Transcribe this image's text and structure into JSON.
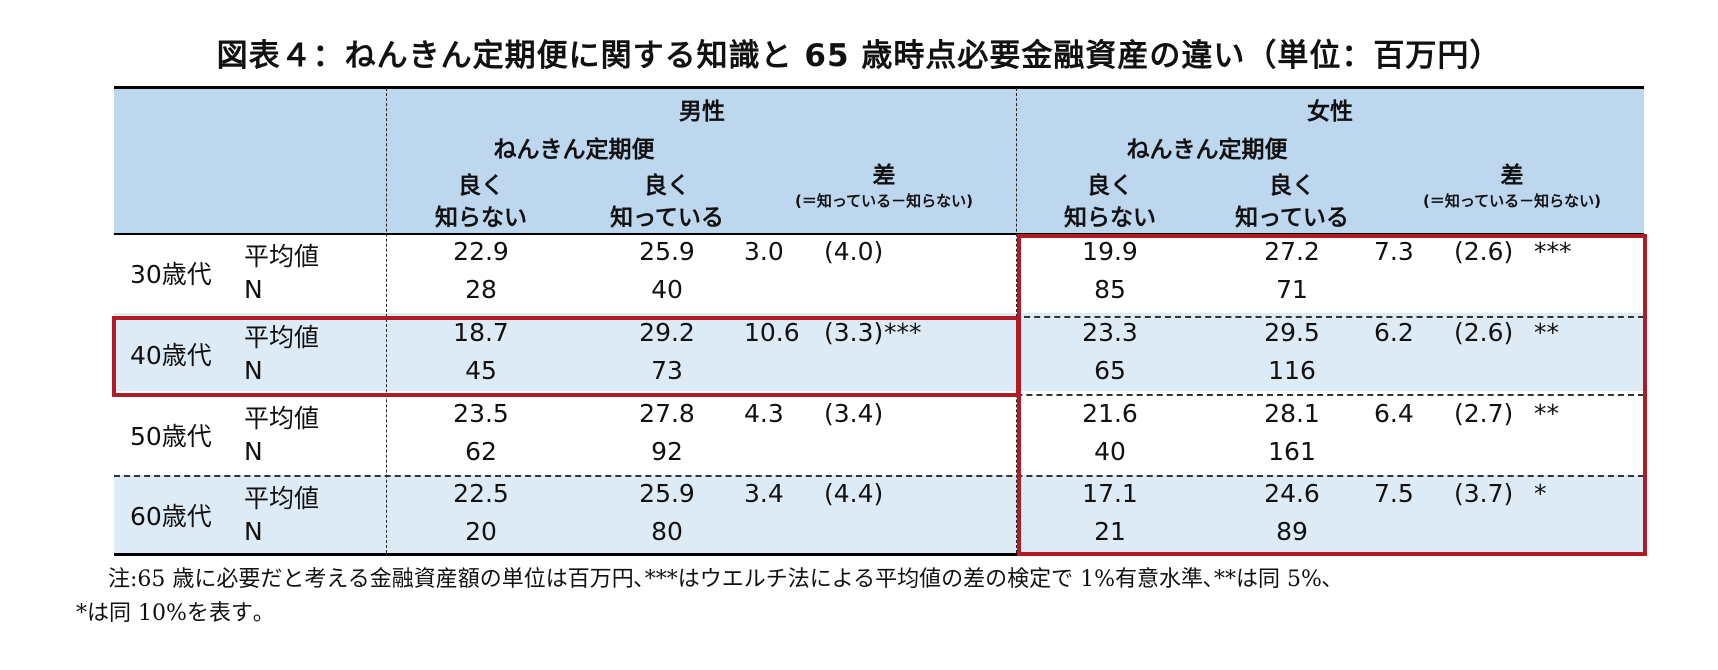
{
  "title": "図表４：ねんきん定期便に関する知識と 65 歳時点必要金融資産の違い（単位：百万円）",
  "header": {
    "male": "男性",
    "female": "女性",
    "nenkin": "ねんきん定期便",
    "col_unknown_1": "良く",
    "col_unknown_2": "知らない",
    "col_known_1": "良く",
    "col_known_2": "知っている",
    "diff_1": "差",
    "diff_2": "(＝知っている－知らない)"
  },
  "row_labels": {
    "mean": "平均値",
    "n": "N"
  },
  "rows": [
    {
      "age": "30歳代",
      "male": {
        "mean_unknown": "22.9",
        "mean_known": "25.9",
        "diff": "3.0",
        "se": "(4.0)",
        "sig": "",
        "n_unknown": "28",
        "n_known": "40"
      },
      "female": {
        "mean_unknown": "19.9",
        "mean_known": "27.2",
        "diff": "7.3",
        "se": "(2.6)",
        "sig": "***",
        "n_unknown": "85",
        "n_known": "71"
      }
    },
    {
      "age": "40歳代",
      "male": {
        "mean_unknown": "18.7",
        "mean_known": "29.2",
        "diff": "10.6",
        "se": "(3.3)",
        "sig": "***",
        "n_unknown": "45",
        "n_known": "73"
      },
      "female": {
        "mean_unknown": "23.3",
        "mean_known": "29.5",
        "diff": "6.2",
        "se": "(2.6)",
        "sig": "**",
        "n_unknown": "65",
        "n_known": "116"
      }
    },
    {
      "age": "50歳代",
      "male": {
        "mean_unknown": "23.5",
        "mean_known": "27.8",
        "diff": "4.3",
        "se": "(3.4)",
        "sig": "",
        "n_unknown": "62",
        "n_known": "92"
      },
      "female": {
        "mean_unknown": "21.6",
        "mean_known": "28.1",
        "diff": "6.4",
        "se": "(2.7)",
        "sig": "**",
        "n_unknown": "40",
        "n_known": "161"
      }
    },
    {
      "age": "60歳代",
      "male": {
        "mean_unknown": "22.5",
        "mean_known": "25.9",
        "diff": "3.4",
        "se": "(4.4)",
        "sig": "",
        "n_unknown": "20",
        "n_known": "80"
      },
      "female": {
        "mean_unknown": "17.1",
        "mean_known": "24.6",
        "diff": "7.5",
        "se": "(3.7)",
        "sig": "*",
        "n_unknown": "21",
        "n_known": "89"
      }
    }
  ],
  "note_line1": "注:65 歳に必要だと考える金融資産額の単位は百万円､***はウエルチ法による平均値の差の検定で 1%有意水準､**は同 5%､",
  "note_line2": "*は同 10%を表す｡",
  "colors": {
    "header_bg": "#bdd7ee",
    "band_bg": "#ddebf7",
    "highlight_frame": "#b01c25"
  }
}
